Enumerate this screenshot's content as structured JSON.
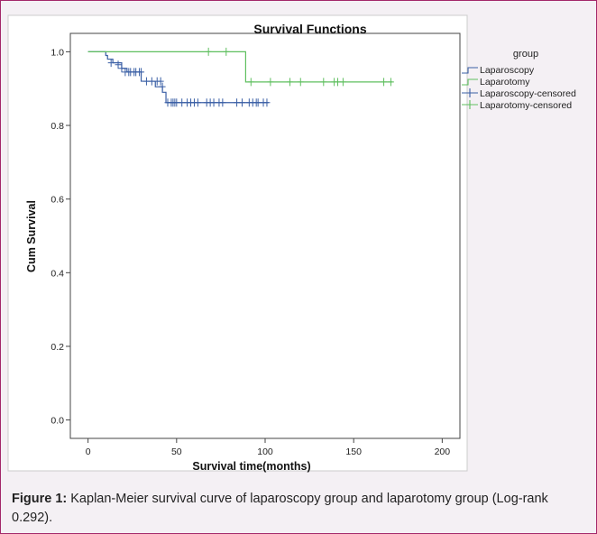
{
  "chart_data": {
    "type": "line",
    "title": "Survival Functions",
    "xlabel": "Survival time(months)",
    "ylabel": "Cum Survival",
    "xlim": [
      -10,
      210
    ],
    "ylim": [
      -0.05,
      1.05
    ],
    "xticks": [
      0,
      50,
      100,
      150,
      200
    ],
    "yticks": [
      0.0,
      0.2,
      0.4,
      0.6,
      0.8,
      1.0
    ],
    "xtick_labels": [
      "0",
      "50",
      "100",
      "150",
      "200"
    ],
    "ytick_labels": [
      "0.0",
      "0.2",
      "0.4",
      "0.6",
      "0.8",
      "1.0"
    ],
    "legend": {
      "title": "group",
      "placement": "top-right",
      "entries": [
        "Laparoscopy",
        "Laparotomy",
        "Laparoscopy-censored",
        "Laparotomy-censored"
      ]
    },
    "series": [
      {
        "name": "Laparoscopy",
        "color": "#3a5fa5",
        "steps": [
          [
            0,
            1.0
          ],
          [
            10,
            0.99
          ],
          [
            11,
            0.98
          ],
          [
            14,
            0.97
          ],
          [
            19,
            0.955
          ],
          [
            22,
            0.945
          ],
          [
            30,
            0.92
          ],
          [
            38,
            0.905
          ],
          [
            42,
            0.89
          ],
          [
            44,
            0.862
          ],
          [
            102,
            0.862
          ]
        ],
        "censored": [
          [
            13,
            0.97
          ],
          [
            17,
            0.965
          ],
          [
            19,
            0.955
          ],
          [
            21,
            0.945
          ],
          [
            23,
            0.945
          ],
          [
            24,
            0.945
          ],
          [
            26,
            0.945
          ],
          [
            27,
            0.945
          ],
          [
            29,
            0.945
          ],
          [
            30,
            0.945
          ],
          [
            33,
            0.92
          ],
          [
            36,
            0.92
          ],
          [
            39,
            0.92
          ],
          [
            41,
            0.92
          ],
          [
            42,
            0.905
          ],
          [
            45,
            0.862
          ],
          [
            47,
            0.862
          ],
          [
            48,
            0.862
          ],
          [
            49,
            0.862
          ],
          [
            50,
            0.862
          ],
          [
            53,
            0.862
          ],
          [
            56,
            0.862
          ],
          [
            58,
            0.862
          ],
          [
            60,
            0.862
          ],
          [
            62,
            0.862
          ],
          [
            67,
            0.862
          ],
          [
            69,
            0.862
          ],
          [
            71,
            0.862
          ],
          [
            74,
            0.862
          ],
          [
            76,
            0.862
          ],
          [
            84,
            0.862
          ],
          [
            87,
            0.862
          ],
          [
            91,
            0.862
          ],
          [
            93,
            0.862
          ],
          [
            95,
            0.862
          ],
          [
            96,
            0.862
          ],
          [
            99,
            0.862
          ],
          [
            101,
            0.862
          ]
        ]
      },
      {
        "name": "Laparotomy",
        "color": "#5fbf5f",
        "steps": [
          [
            0,
            1.0
          ],
          [
            89,
            1.0
          ],
          [
            89,
            0.918
          ],
          [
            172,
            0.918
          ]
        ],
        "censored": [
          [
            68,
            1.0
          ],
          [
            78,
            1.0
          ],
          [
            92,
            0.918
          ],
          [
            103,
            0.918
          ],
          [
            114,
            0.918
          ],
          [
            120,
            0.918
          ],
          [
            133,
            0.918
          ],
          [
            139,
            0.918
          ],
          [
            141,
            0.918
          ],
          [
            144,
            0.918
          ],
          [
            167,
            0.918
          ],
          [
            171,
            0.918
          ]
        ]
      }
    ]
  },
  "caption": {
    "label": "Figure 1:",
    "text": " Kaplan-Meier survival curve of laparoscopy group and laparotomy group (Log-rank 0.292)."
  }
}
